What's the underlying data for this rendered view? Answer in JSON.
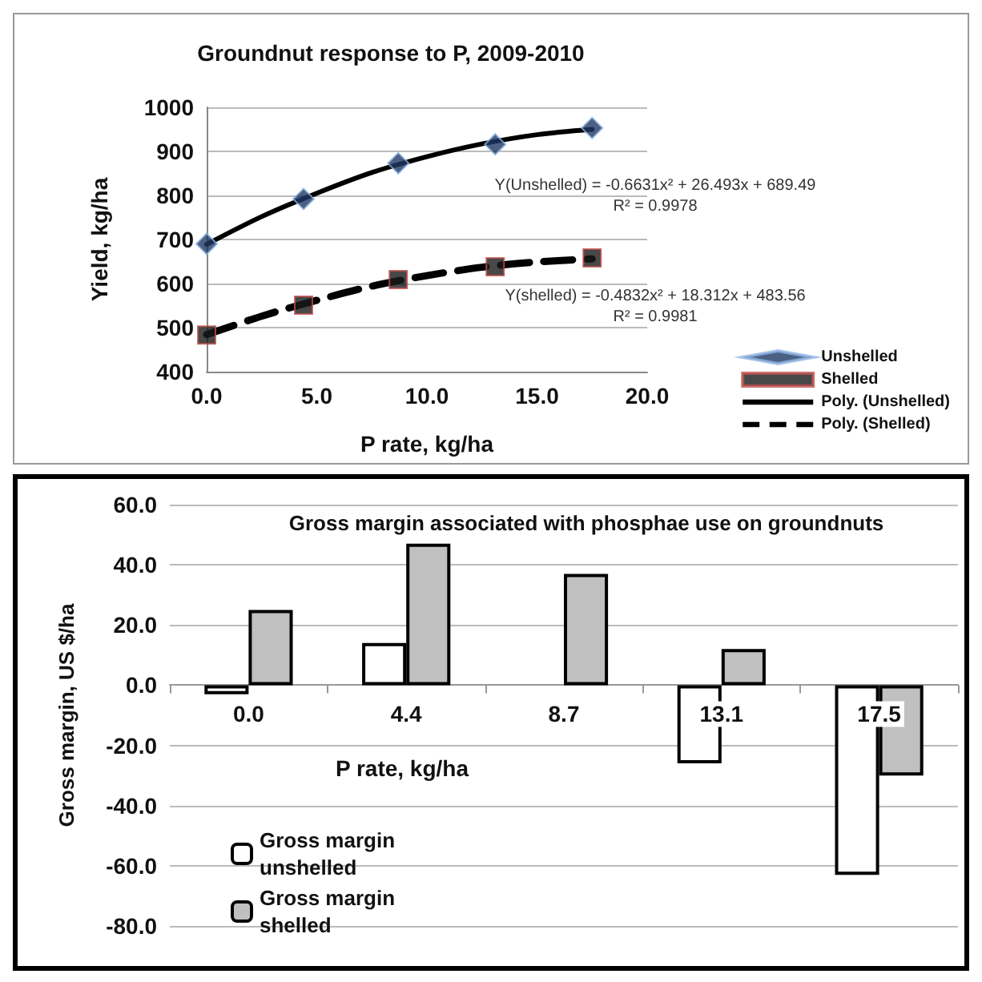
{
  "chart_data": [
    {
      "type": "scatter",
      "title": "Groundnut response to P, 2009-2010",
      "xlabel": "P rate, kg/ha",
      "ylabel": "Yield, kg/ha",
      "x": [
        0,
        4.4,
        8.7,
        13.1,
        17.5
      ],
      "series": [
        {
          "name": "Unshelled",
          "color": "#1f3864",
          "marker": "diamond",
          "values": [
            690,
            792,
            873,
            916,
            953
          ]
        },
        {
          "name": "Shelled",
          "color": "#1a1a1a",
          "marker": "square",
          "values": [
            483,
            551,
            609,
            638,
            658
          ]
        },
        {
          "name": "Poly. (Unshelled)",
          "type": "line",
          "color": "#000000",
          "marker": "none",
          "line_style": "solid",
          "x": [
            0,
            2.5,
            5,
            7.5,
            10,
            12.5,
            15,
            17.5
          ],
          "values": [
            689,
            752,
            805,
            852,
            888,
            917,
            938,
            950
          ]
        },
        {
          "name": "Poly. (Shelled)",
          "type": "line",
          "color": "#000000",
          "marker": "none",
          "line_style": "dashed",
          "x": [
            0,
            2.5,
            5,
            7.5,
            10,
            12.5,
            15,
            17.5
          ],
          "values": [
            484,
            526,
            562,
            594,
            618,
            637,
            649,
            656
          ]
        }
      ],
      "xlim": [
        0,
        20
      ],
      "xticks": [
        {
          "value": 0,
          "label": "0.0"
        },
        {
          "value": 5,
          "label": "5.0"
        },
        {
          "value": 10,
          "label": "10.0"
        },
        {
          "value": 15,
          "label": "15.0"
        },
        {
          "value": 20,
          "label": "20.0"
        }
      ],
      "ylim": [
        400,
        1000
      ],
      "yticks": [
        400,
        500,
        600,
        700,
        800,
        900,
        1000
      ],
      "annotations": [
        "Y(Unshelled) = -0.6631x² + 26.493x + 689.49",
        "R² = 0.9978",
        "Y(shelled) = -0.4832x² + 18.312x + 483.56",
        "R² = 0.9981"
      ],
      "grid": "y",
      "legend": "right"
    },
    {
      "type": "bar",
      "title": "Gross margin associated with phosphae use on groundnuts",
      "xlabel": "P rate, kg/ha",
      "ylabel": "Gross margin, US $/ha",
      "categories": [
        "0.0",
        "4.4",
        "8.7",
        "13.1",
        "17.5"
      ],
      "series": [
        {
          "name": "Gross margin unshelled",
          "color": "#ffffff",
          "values": [
            -3,
            14,
            null,
            -26,
            -63
          ]
        },
        {
          "name": "Gross margin shelled",
          "color": "#c0c0c0",
          "values": [
            25,
            47,
            37,
            12,
            -30
          ]
        }
      ],
      "ylim": [
        -80,
        60
      ],
      "yticks": [
        {
          "value": -80,
          "label": "-80.0"
        },
        {
          "value": -60,
          "label": "-60.0"
        },
        {
          "value": -40,
          "label": "-40.0"
        },
        {
          "value": -20,
          "label": "-20.0"
        },
        {
          "value": 0,
          "label": "0.0"
        },
        {
          "value": 20,
          "label": "20.0"
        },
        {
          "value": 40,
          "label": "40.0"
        },
        {
          "value": 60,
          "label": "60.0"
        }
      ],
      "grid": "y",
      "legend": "bottom left"
    }
  ]
}
